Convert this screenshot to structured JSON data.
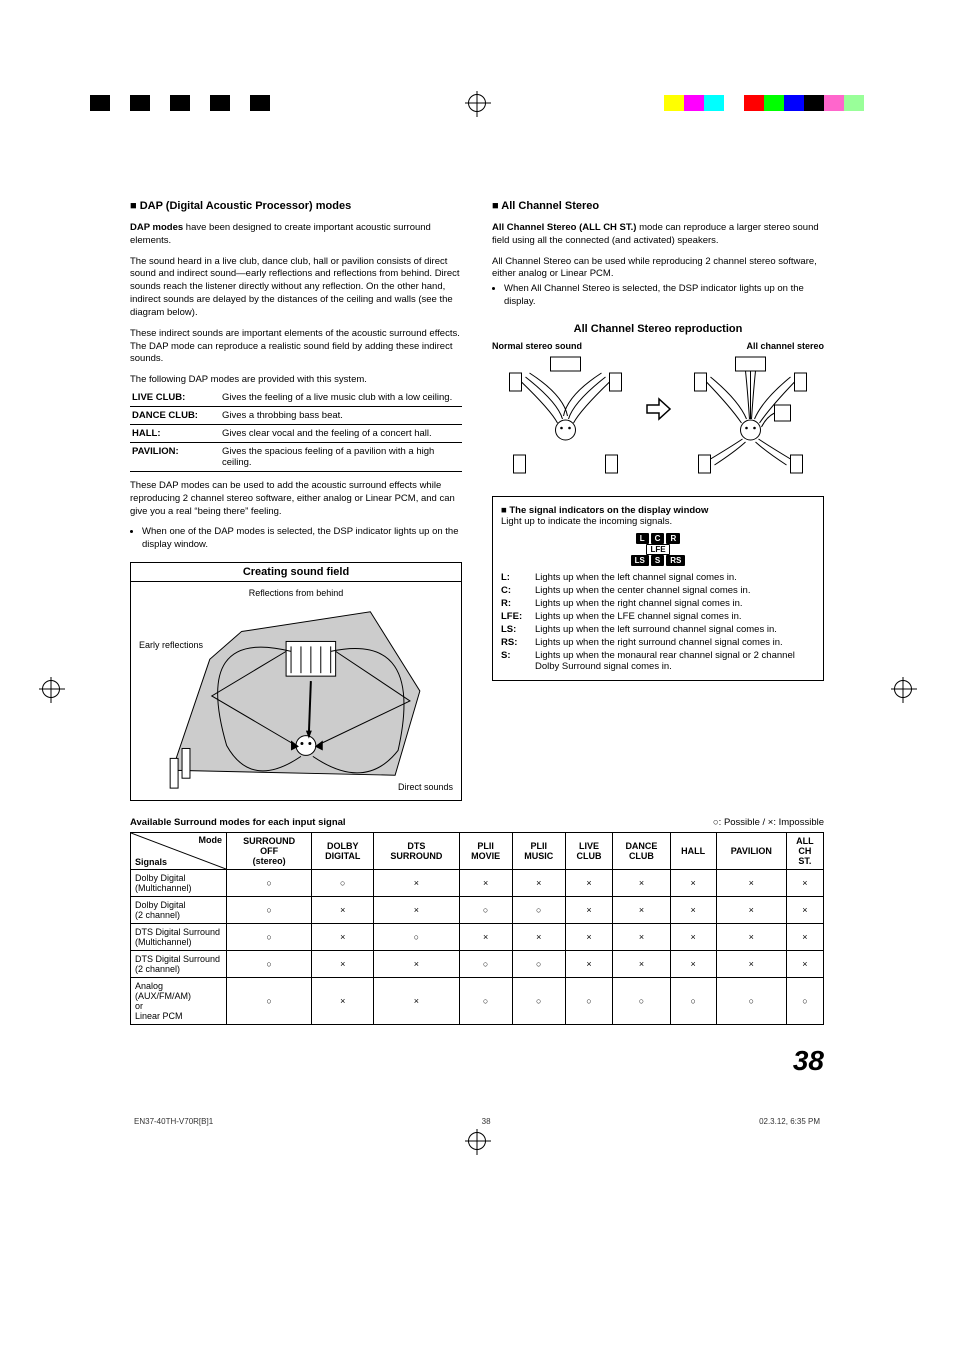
{
  "colorbars": {
    "left": [
      "#000000",
      "#ffffff",
      "#000000",
      "#ffffff",
      "#000000",
      "#ffffff",
      "#000000",
      "#ffffff",
      "#000000",
      "#ffffff"
    ],
    "right": [
      "#ffff00",
      "#ff00ff",
      "#00ffff",
      "#ffffff",
      "#ff0000",
      "#00ff00",
      "#0000ff",
      "#000000",
      "#ff66cc",
      "#99ff99"
    ]
  },
  "dap": {
    "heading": "■ DAP (Digital Acoustic Processor) modes",
    "intro_bold": "DAP modes",
    "intro_rest": " have been designed to create important acoustic surround elements.",
    "para2": "The sound heard in a live club, dance club, hall or pavilion consists of direct sound and indirect sound—early reflections and reflections from behind. Direct sounds reach the listener directly without any reflection. On the other hand, indirect sounds are delayed by the distances of the ceiling and walls (see the diagram below).",
    "para3": "These indirect sounds are important elements of the acoustic surround effects. The DAP mode can reproduce a realistic sound field by adding these indirect sounds.",
    "table_intro": "The following DAP modes are provided with this system.",
    "rows": [
      {
        "k": "LIVE CLUB:",
        "v": "Gives the feeling of a live music club with a low ceiling."
      },
      {
        "k": "DANCE CLUB:",
        "v": "Gives a throbbing bass beat."
      },
      {
        "k": "HALL:",
        "v": "Gives clear vocal and the feeling of a concert hall."
      },
      {
        "k": "PAVILION:",
        "v": "Gives the spacious feeling of a pavilion with a high ceiling."
      }
    ],
    "after": "These DAP modes can be used to add the acoustic surround effects while reproducing 2 channel stereo software, either analog or Linear PCM, and can give you a real “being there” feeling.",
    "bullet": "When one of the DAP modes is selected, the DSP indicator lights up on the display window."
  },
  "soundfield": {
    "title": "Creating sound field",
    "reflections": "Reflections from behind",
    "early": "Early reflections",
    "direct": "Direct sounds"
  },
  "allch": {
    "heading": "■ All Channel Stereo",
    "intro_bold": "All Channel Stereo (ALL CH ST.)",
    "intro_rest": " mode can reproduce a larger stereo sound field using all the connected (and activated) speakers.",
    "para2": "All Channel Stereo can be used while reproducing 2 channel stereo software, either analog or Linear PCM.",
    "bullet": "When All Channel Stereo is selected, the DSP indicator lights up on the display.",
    "repro_title": "All Channel Stereo reproduction",
    "label_normal": "Normal stereo sound",
    "label_allch": "All channel stereo"
  },
  "sig": {
    "title": "■ The signal indicators on the display window",
    "sub": "Light up to indicate the incoming signals.",
    "chips_top": [
      "L",
      "C",
      "R"
    ],
    "chips_mid": [
      "LFE"
    ],
    "chips_bot": [
      "LS",
      "S",
      "RS"
    ],
    "defs": [
      {
        "k": "L:",
        "v": "Lights up when the left channel signal comes in."
      },
      {
        "k": "C:",
        "v": "Lights up when the center channel signal comes in."
      },
      {
        "k": "R:",
        "v": "Lights up when the right channel signal comes in."
      },
      {
        "k": "LFE:",
        "v": "Lights up when the LFE channel signal comes in."
      },
      {
        "k": "LS:",
        "v": "Lights up when the left surround channel signal comes in."
      },
      {
        "k": "RS:",
        "v": "Lights up when the right surround channel signal comes in."
      },
      {
        "k": "S:",
        "v": "Lights up when the monaural rear channel signal or 2 channel Dolby Surround signal comes in."
      }
    ]
  },
  "avail": {
    "title": "Available Surround modes for each input signal",
    "legend": "○: Possible / ×: Impossible",
    "diag_mode": "Mode",
    "diag_signals": "Signals",
    "columns": [
      "SURROUND OFF (stereo)",
      "DOLBY DIGITAL",
      "DTS SURROUND",
      "PLII MOVIE",
      "PLII MUSIC",
      "LIVE CLUB",
      "DANCE CLUB",
      "HALL",
      "PAVILION",
      "ALL CH ST."
    ],
    "rows": [
      {
        "sig": "Dolby Digital (Multichannel)",
        "cells": [
          "○",
          "○",
          "×",
          "×",
          "×",
          "×",
          "×",
          "×",
          "×",
          "×"
        ]
      },
      {
        "sig": "Dolby Digital (2 channel)",
        "cells": [
          "○",
          "×",
          "×",
          "○",
          "○",
          "×",
          "×",
          "×",
          "×",
          "×"
        ]
      },
      {
        "sig": "DTS Digital Surround (Multichannel)",
        "cells": [
          "○",
          "×",
          "○",
          "×",
          "×",
          "×",
          "×",
          "×",
          "×",
          "×"
        ]
      },
      {
        "sig": "DTS Digital Surround (2 channel)",
        "cells": [
          "○",
          "×",
          "×",
          "○",
          "○",
          "×",
          "×",
          "×",
          "×",
          "×"
        ]
      },
      {
        "sig": "Analog (AUX/FM/AM) or Linear PCM",
        "cells": [
          "○",
          "×",
          "×",
          "○",
          "○",
          "○",
          "○",
          "○",
          "○",
          "○"
        ]
      }
    ]
  },
  "page_number": "38",
  "footer": {
    "file": "EN37-40TH-V70R[B]1",
    "pg": "38",
    "date": "02.3.12, 6:35 PM"
  }
}
